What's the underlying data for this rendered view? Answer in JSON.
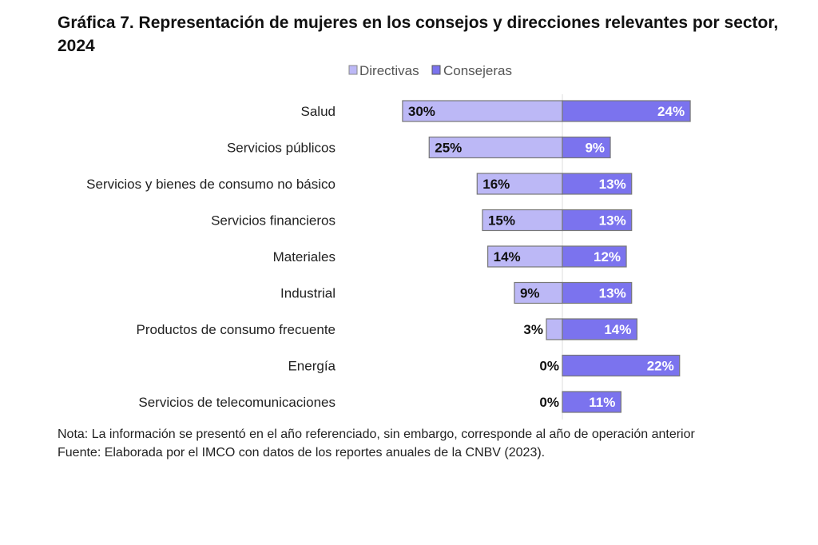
{
  "chart_data": {
    "type": "bar",
    "title": "Gráfica 7. Representación de mujeres en los consejos y direcciones relevantes por sector, 2024",
    "categories": [
      "Salud",
      "Servicios públicos",
      "Servicios y bienes de consumo no básico",
      "Servicios financieros",
      "Materiales",
      "Industrial",
      "Productos de consumo frecuente",
      "Energía",
      "Servicios de telecomunicaciones"
    ],
    "series": [
      {
        "name": "Directivas",
        "values": [
          30,
          25,
          16,
          15,
          14,
          9,
          3,
          0,
          0
        ],
        "color": "#bcb8f6"
      },
      {
        "name": "Consejeras",
        "values": [
          24,
          9,
          13,
          13,
          12,
          13,
          14,
          22,
          11
        ],
        "color": "#7b73ee"
      }
    ],
    "value_labels": {
      "Directivas": [
        "30%",
        "25%",
        "16%",
        "15%",
        "14%",
        "9%",
        "3%",
        "0%",
        "0%"
      ],
      "Consejeras": [
        "24%",
        "9%",
        "13%",
        "13%",
        "12%",
        "13%",
        "14%",
        "22%",
        "11%"
      ]
    },
    "legend": "top-center",
    "xlim": [
      -30,
      30
    ],
    "grid": false
  },
  "notes": {
    "nota": "Nota: La información se presentó en el año referenciado, sin embargo, corresponde al año de operación anterior",
    "fuente": "Fuente: Elaborada por el IMCO con datos de los reportes anuales de la CNBV (2023)."
  }
}
